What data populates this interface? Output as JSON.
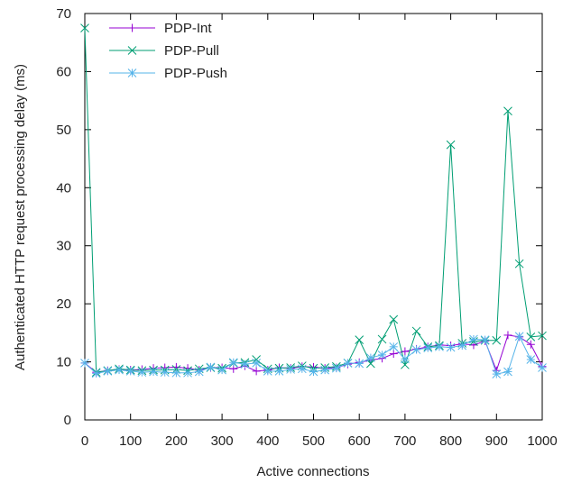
{
  "chart_data": {
    "type": "line",
    "title": "",
    "xlabel": "Active connections",
    "ylabel": "Authenticated HTTP request processing delay (ms)",
    "xlim": [
      0,
      1000
    ],
    "ylim": [
      0,
      70
    ],
    "xticks": [
      0,
      100,
      200,
      300,
      400,
      500,
      600,
      700,
      800,
      900,
      1000
    ],
    "yticks": [
      0,
      10,
      20,
      30,
      40,
      50,
      60,
      70
    ],
    "grid": false,
    "legend_position": "top-left",
    "x": [
      0,
      25,
      50,
      75,
      100,
      125,
      150,
      175,
      200,
      225,
      250,
      275,
      300,
      325,
      350,
      375,
      400,
      425,
      450,
      475,
      500,
      525,
      550,
      575,
      600,
      625,
      650,
      675,
      700,
      725,
      750,
      775,
      800,
      825,
      850,
      875,
      900,
      925,
      950,
      975,
      1000
    ],
    "series": [
      {
        "name": "PDP-Int",
        "color": "#9400d3",
        "marker": "plus",
        "values": [
          9.8,
          8.2,
          8.5,
          8.7,
          8.6,
          8.7,
          8.9,
          9.0,
          9.1,
          8.9,
          8.6,
          9.0,
          9.0,
          8.8,
          9.3,
          8.4,
          8.6,
          9.0,
          8.9,
          9.2,
          9.1,
          8.9,
          9.0,
          9.6,
          9.9,
          10.3,
          10.6,
          11.4,
          11.8,
          12.2,
          12.6,
          12.9,
          12.8,
          13.1,
          12.9,
          13.6,
          8.5,
          14.6,
          14.3,
          13.0,
          9.2
        ]
      },
      {
        "name": "PDP-Pull",
        "color": "#009e73",
        "marker": "x",
        "values": [
          67.5,
          8.2,
          8.5,
          8.8,
          8.6,
          8.5,
          8.6,
          8.6,
          8.7,
          8.5,
          8.8,
          9.0,
          8.9,
          9.8,
          9.9,
          10.4,
          8.8,
          8.9,
          9.0,
          9.3,
          8.9,
          9.0,
          9.2,
          9.8,
          13.8,
          9.7,
          13.9,
          17.3,
          9.5,
          15.3,
          12.6,
          12.8,
          47.4,
          13.2,
          13.5,
          13.7,
          13.7,
          53.2,
          26.9,
          14.3,
          14.5
        ]
      },
      {
        "name": "PDP-Push",
        "color": "#56b4e9",
        "marker": "star",
        "values": [
          9.8,
          8.0,
          8.4,
          8.6,
          8.4,
          8.2,
          8.3,
          8.2,
          8.1,
          8.1,
          8.3,
          9.1,
          8.6,
          9.9,
          9.6,
          9.8,
          8.4,
          8.4,
          8.7,
          8.8,
          8.3,
          8.6,
          8.9,
          9.8,
          9.7,
          10.7,
          11.2,
          12.6,
          10.5,
          12.1,
          12.4,
          12.6,
          12.5,
          12.8,
          13.9,
          13.8,
          7.9,
          8.3,
          14.4,
          10.4,
          9.0
        ]
      }
    ]
  }
}
